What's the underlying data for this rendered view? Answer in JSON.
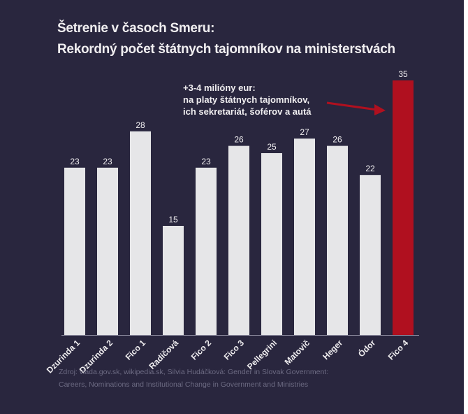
{
  "chart_data": {
    "type": "bar",
    "title": "Šetrenie v časoch Smeru:",
    "subtitle": "Rekordný počet štátnych tajomníkov na ministerstvách",
    "categories": [
      "Dzurinda 1",
      "Dzurinda 2",
      "Fico 1",
      "Radičová",
      "Fico 2",
      "Fico 3",
      "Pellegrini",
      "Matovič",
      "Heger",
      "Ódor",
      "Fico 4"
    ],
    "values": [
      23,
      23,
      28,
      15,
      23,
      26,
      25,
      27,
      26,
      22,
      35
    ],
    "highlight_index": 10,
    "colors": {
      "default": "#e6e6e8",
      "highlight": "#b0101f",
      "background": "#29263e"
    },
    "ylim": [
      0,
      35
    ],
    "xlabel": "",
    "ylabel": "",
    "annotation": [
      "+3-4 milióny eur:",
      "na platy štátnych tajomníkov,",
      "ich sekretariát, šoférov a autá"
    ]
  },
  "footer": [
    "Zdroj: vlada.gov.sk, wikipedia.sk, Silvia Hudáčková: Gender in Slovak Government:",
    "Careers, Nominations and Institutional Change in Government and Ministries"
  ]
}
